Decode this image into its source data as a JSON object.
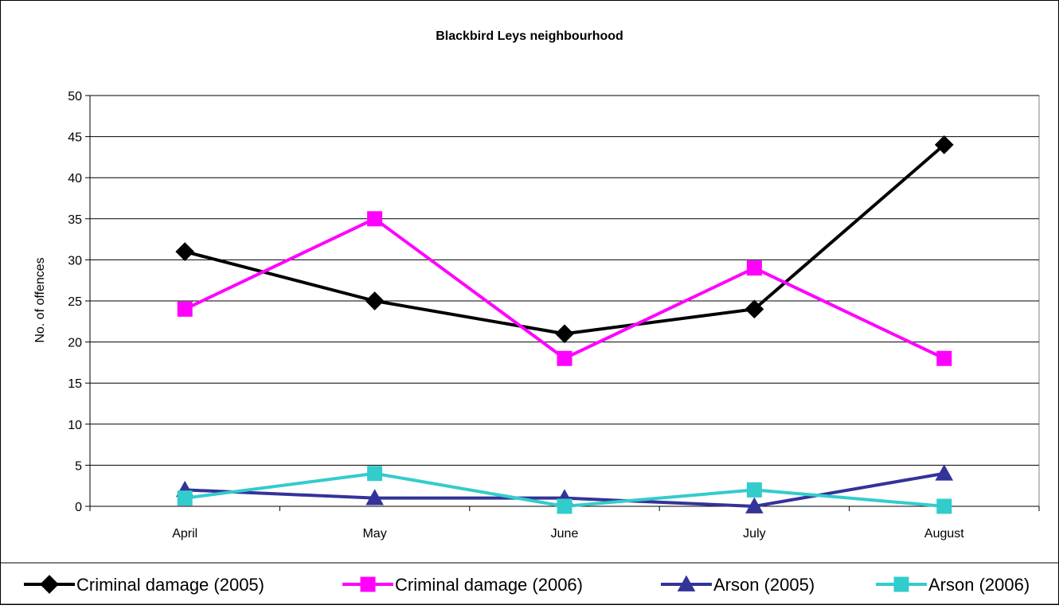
{
  "chart_data": {
    "type": "line",
    "title": "Blackbird Leys neighbourhood",
    "xlabel": "",
    "ylabel": "No. of offences",
    "categories": [
      "April",
      "May",
      "June",
      "July",
      "August"
    ],
    "ylim": [
      0,
      50
    ],
    "yticks": [
      0,
      5,
      10,
      15,
      20,
      25,
      30,
      35,
      40,
      45,
      50
    ],
    "grid": true,
    "legend_position": "bottom",
    "series": [
      {
        "name": "Criminal damage (2005)",
        "values": [
          31,
          25,
          21,
          24,
          44
        ],
        "color": "#000000",
        "marker": "diamond"
      },
      {
        "name": "Criminal damage (2006)",
        "values": [
          24,
          35,
          18,
          29,
          18
        ],
        "color": "#FF00FF",
        "marker": "square"
      },
      {
        "name": "Arson (2005)",
        "values": [
          2,
          1,
          1,
          0,
          4
        ],
        "color": "#333399",
        "marker": "triangle"
      },
      {
        "name": "Arson (2006)",
        "values": [
          1,
          4,
          0,
          2,
          0
        ],
        "color": "#33CCCC",
        "marker": "square"
      }
    ]
  }
}
